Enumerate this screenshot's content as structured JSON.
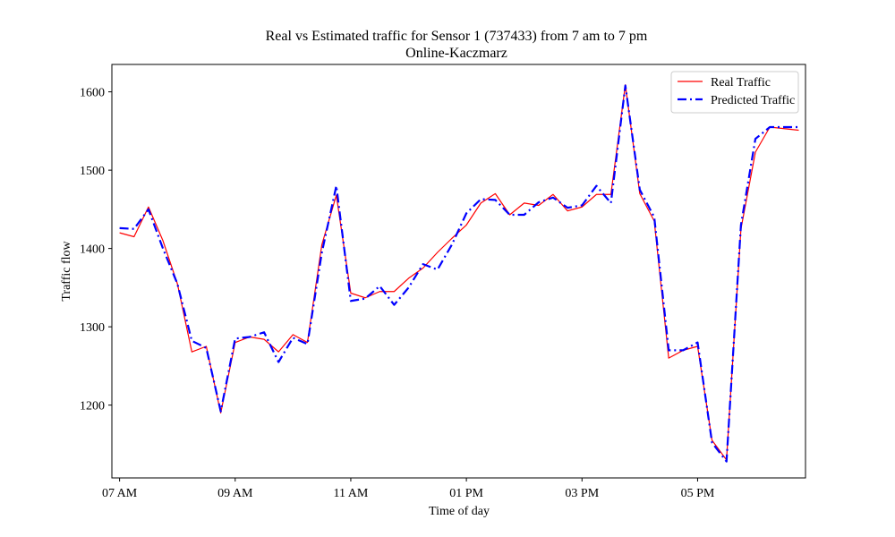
{
  "chart_data": {
    "type": "line",
    "title": "Real vs Estimated traffic for Sensor 1 (737433) from 7 am to 7 pm",
    "subtitle": "Online-Kaczmarz",
    "xlabel": "Time of day",
    "ylabel": "Traffic flow",
    "x_unit": "minutes from 07 AM (15-minute intervals)",
    "x": [
      0,
      15,
      30,
      45,
      60,
      75,
      90,
      105,
      120,
      135,
      150,
      165,
      180,
      195,
      210,
      225,
      240,
      255,
      270,
      285,
      300,
      315,
      330,
      345,
      360,
      375,
      390,
      405,
      420,
      435,
      450,
      465,
      480,
      495,
      510,
      525,
      540,
      555,
      570,
      585,
      600,
      615,
      630,
      645,
      660,
      675,
      690,
      705
    ],
    "xlim": [
      -8,
      712
    ],
    "ylim": [
      1107,
      1635
    ],
    "xticks": [
      {
        "value": 0,
        "label": "07 AM"
      },
      {
        "value": 120,
        "label": "09 AM"
      },
      {
        "value": 240,
        "label": "11 AM"
      },
      {
        "value": 360,
        "label": "01 PM"
      },
      {
        "value": 480,
        "label": "03 PM"
      },
      {
        "value": 600,
        "label": "05 PM"
      }
    ],
    "yticks": [
      {
        "value": 1200,
        "label": "1200"
      },
      {
        "value": 1300,
        "label": "1300"
      },
      {
        "value": 1400,
        "label": "1400"
      },
      {
        "value": 1500,
        "label": "1500"
      },
      {
        "value": 1600,
        "label": "1600"
      }
    ],
    "grid": false,
    "legend_position": "top-right",
    "series": [
      {
        "name": "Real Traffic",
        "color": "#ff0000",
        "style": "solid",
        "values": [
          1420,
          1415,
          1453,
          1410,
          1355,
          1268,
          1275,
          1190,
          1280,
          1287,
          1284,
          1268,
          1290,
          1280,
          1405,
          1468,
          1343,
          1337,
          1345,
          1345,
          1362,
          1375,
          1395,
          1413,
          1430,
          1458,
          1470,
          1443,
          1458,
          1455,
          1469,
          1448,
          1453,
          1469,
          1469,
          1609,
          1470,
          1435,
          1260,
          1270,
          1275,
          1155,
          1130,
          1425,
          1523,
          1555,
          1553,
          1551
        ]
      },
      {
        "name": "Predicted Traffic",
        "color": "#0000ff",
        "style": "dashdot",
        "values": [
          1426,
          1425,
          1450,
          1400,
          1355,
          1282,
          1273,
          1192,
          1285,
          1287,
          1293,
          1255,
          1286,
          1278,
          1395,
          1480,
          1333,
          1336,
          1352,
          1328,
          1350,
          1380,
          1373,
          1405,
          1445,
          1463,
          1462,
          1443,
          1443,
          1459,
          1465,
          1452,
          1455,
          1480,
          1458,
          1608,
          1475,
          1440,
          1270,
          1270,
          1280,
          1152,
          1128,
          1430,
          1540,
          1555,
          1555,
          1555
        ]
      }
    ]
  }
}
